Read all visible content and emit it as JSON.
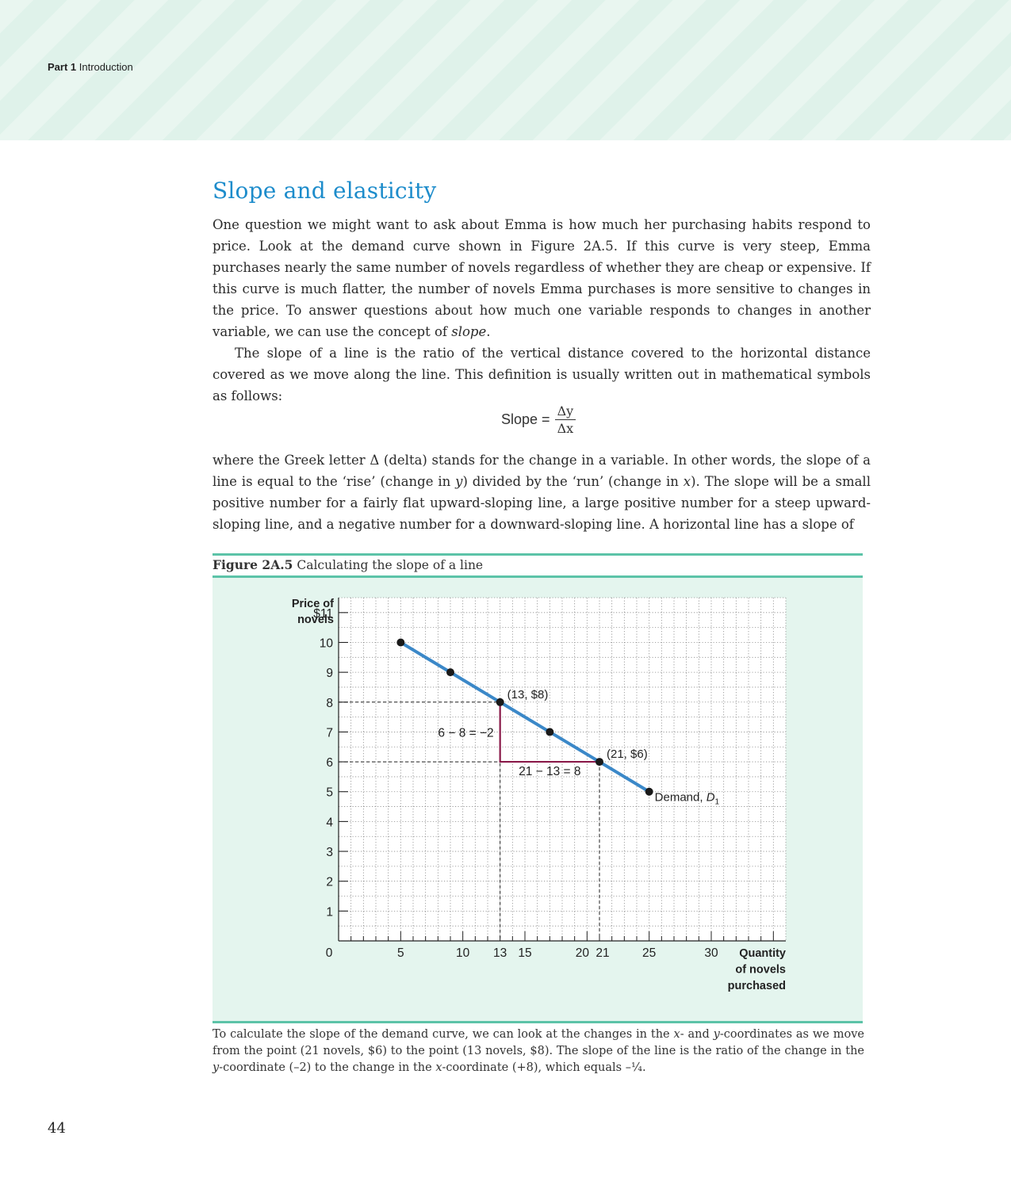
{
  "running_head": {
    "part": "Part 1",
    "section": "Introduction"
  },
  "section_title": "Slope and elasticity",
  "paragraphs": {
    "p1_before": "One question we might want to ask about Emma is how much her purchasing habits respond to price. Look at the demand curve shown in Figure 2A.5. If this curve is very steep, Emma purchases nearly the same number of novels regardless of whether they are cheap or expensive. If this curve is much flatter, the number of novels Emma purchases is more sensitive to changes in the price. To answer questions about how much one variable responds to changes in another variable, we can use the concept of ",
    "p1_italic": "slope",
    "p1_after": ".",
    "p2": "The slope of a line is the ratio of the vertical distance covered to the horizontal distance covered as we move along the line. This definition is usually written out in mathematical symbols as follows:",
    "p3_a": "where the Greek letter Δ (delta) stands for the change in a variable. In other words, the slope of a line is equal to the ‘rise’ (change in ",
    "p3_y": "y",
    "p3_b": ") divided by the ‘run’ (change in ",
    "p3_x": "x",
    "p3_c": "). The slope will be a small positive number for a fairly flat upward-sloping line, a large positive number for a steep upward-sloping line, and a negative number for a downward-sloping line. A horizontal line has a slope of"
  },
  "formula": {
    "label": "Slope =",
    "numerator": "Δy",
    "denominator": "Δx"
  },
  "figure": {
    "number": "Figure 2A.5",
    "title": "Calculating the slope of a line"
  },
  "chart_data": {
    "type": "line",
    "ylabel": "Price of novels",
    "xlabel": "Quantity of novels purchased",
    "ylim": [
      0,
      11.5
    ],
    "xlim": [
      0,
      36
    ],
    "y_ticks": [
      1,
      2,
      3,
      4,
      5,
      6,
      7,
      8,
      9,
      10,
      11
    ],
    "y_tick_labels": [
      "1",
      "2",
      "3",
      "4",
      "5",
      "6",
      "7",
      "8",
      "9",
      "10",
      "$11"
    ],
    "x_ticks": [
      0,
      5,
      10,
      13,
      15,
      20,
      21,
      25,
      30
    ],
    "x_tick_labels": [
      "0",
      "5",
      "10",
      "13",
      "15",
      "20",
      "21",
      "25",
      "30"
    ],
    "grid": true,
    "series": [
      {
        "name": "Demand, D1",
        "color": "#3b88c8",
        "x": [
          5,
          9,
          13,
          17,
          21,
          25
        ],
        "y": [
          10,
          9,
          8,
          7,
          6,
          5
        ]
      }
    ],
    "point_labels": [
      {
        "x": 13,
        "y": 8,
        "text": "(13, $8)"
      },
      {
        "x": 21,
        "y": 6,
        "text": "(21, $6)"
      }
    ],
    "curve_label": {
      "text": "Demand, ",
      "italic": "D",
      "subscript": "1"
    },
    "rise_label": "6 − 8 = −2",
    "run_label": "21 − 13 = 8",
    "triangle_color": "#8a1a4a"
  },
  "note": {
    "a": "To calculate the slope of the demand curve, we can look at the changes in the ",
    "x1": "x",
    "b": "- and ",
    "y1": "y",
    "c": "-coordinates as we move from the point (21 novels, $6) to the point (13 novels, $8). The slope of the line is the ratio of the change in the ",
    "y2": "y",
    "d": "-coordinate (–2) to the change in the ",
    "x2": "x",
    "e": "-coordinate (+8), which equals –¼."
  },
  "page_number": "44"
}
